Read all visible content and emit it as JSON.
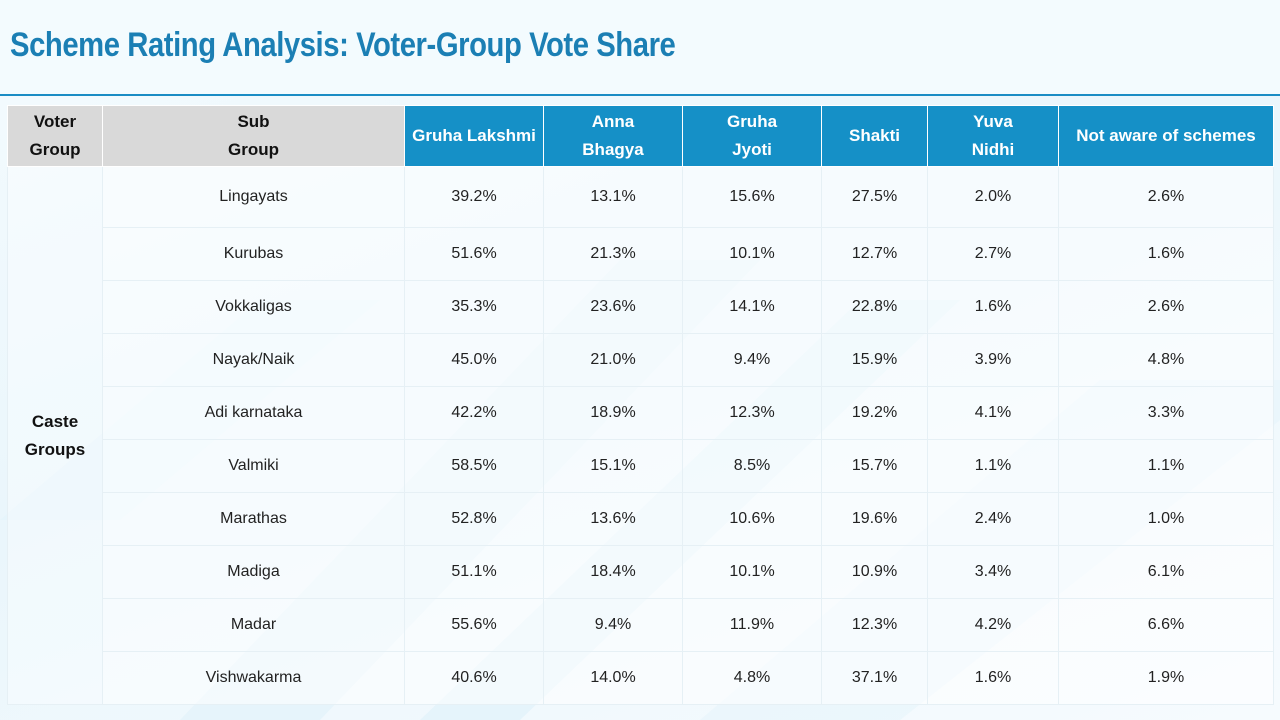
{
  "title": "Scheme Rating Analysis: Voter-Group Vote Share",
  "colors": {
    "title": "#1b7fb4",
    "header_blue": "#1590c7",
    "header_gray": "#d9d9d9"
  },
  "table": {
    "headers": {
      "voter_group": [
        "Voter",
        "Group"
      ],
      "sub_group": [
        "Sub",
        "Group"
      ],
      "gruha_lakshmi": [
        "Gruha Lakshmi"
      ],
      "anna_bhagya": [
        "Anna",
        "Bhagya"
      ],
      "gruha_jyoti": [
        "Gruha",
        "Jyoti"
      ],
      "shakti": [
        "Shakti"
      ],
      "yuva_nidhi": [
        "Yuva",
        "Nidhi"
      ],
      "not_aware": [
        "Not aware of schemes"
      ]
    },
    "group": [
      "Caste",
      "Groups"
    ],
    "rows": [
      [
        "Lingayats",
        "39.2%",
        "13.1%",
        "15.6%",
        "27.5%",
        "2.0%",
        "2.6%"
      ],
      [
        "Kurubas",
        "51.6%",
        "21.3%",
        "10.1%",
        "12.7%",
        "2.7%",
        "1.6%"
      ],
      [
        "Vokkaligas",
        "35.3%",
        "23.6%",
        "14.1%",
        "22.8%",
        "1.6%",
        "2.6%"
      ],
      [
        "Nayak/Naik",
        "45.0%",
        "21.0%",
        "9.4%",
        "15.9%",
        "3.9%",
        "4.8%"
      ],
      [
        "Adi karnataka",
        "42.2%",
        "18.9%",
        "12.3%",
        "19.2%",
        "4.1%",
        "3.3%"
      ],
      [
        "Valmiki",
        "58.5%",
        "15.1%",
        "8.5%",
        "15.7%",
        "1.1%",
        "1.1%"
      ],
      [
        "Marathas",
        "52.8%",
        "13.6%",
        "10.6%",
        "19.6%",
        "2.4%",
        "1.0%"
      ],
      [
        "Madiga",
        "51.1%",
        "18.4%",
        "10.1%",
        "10.9%",
        "3.4%",
        "6.1%"
      ],
      [
        "Madar",
        "55.6%",
        "9.4%",
        "11.9%",
        "12.3%",
        "4.2%",
        "6.6%"
      ],
      [
        "Vishwakarma",
        "40.6%",
        "14.0%",
        "4.8%",
        "37.1%",
        "1.6%",
        "1.9%"
      ]
    ]
  }
}
